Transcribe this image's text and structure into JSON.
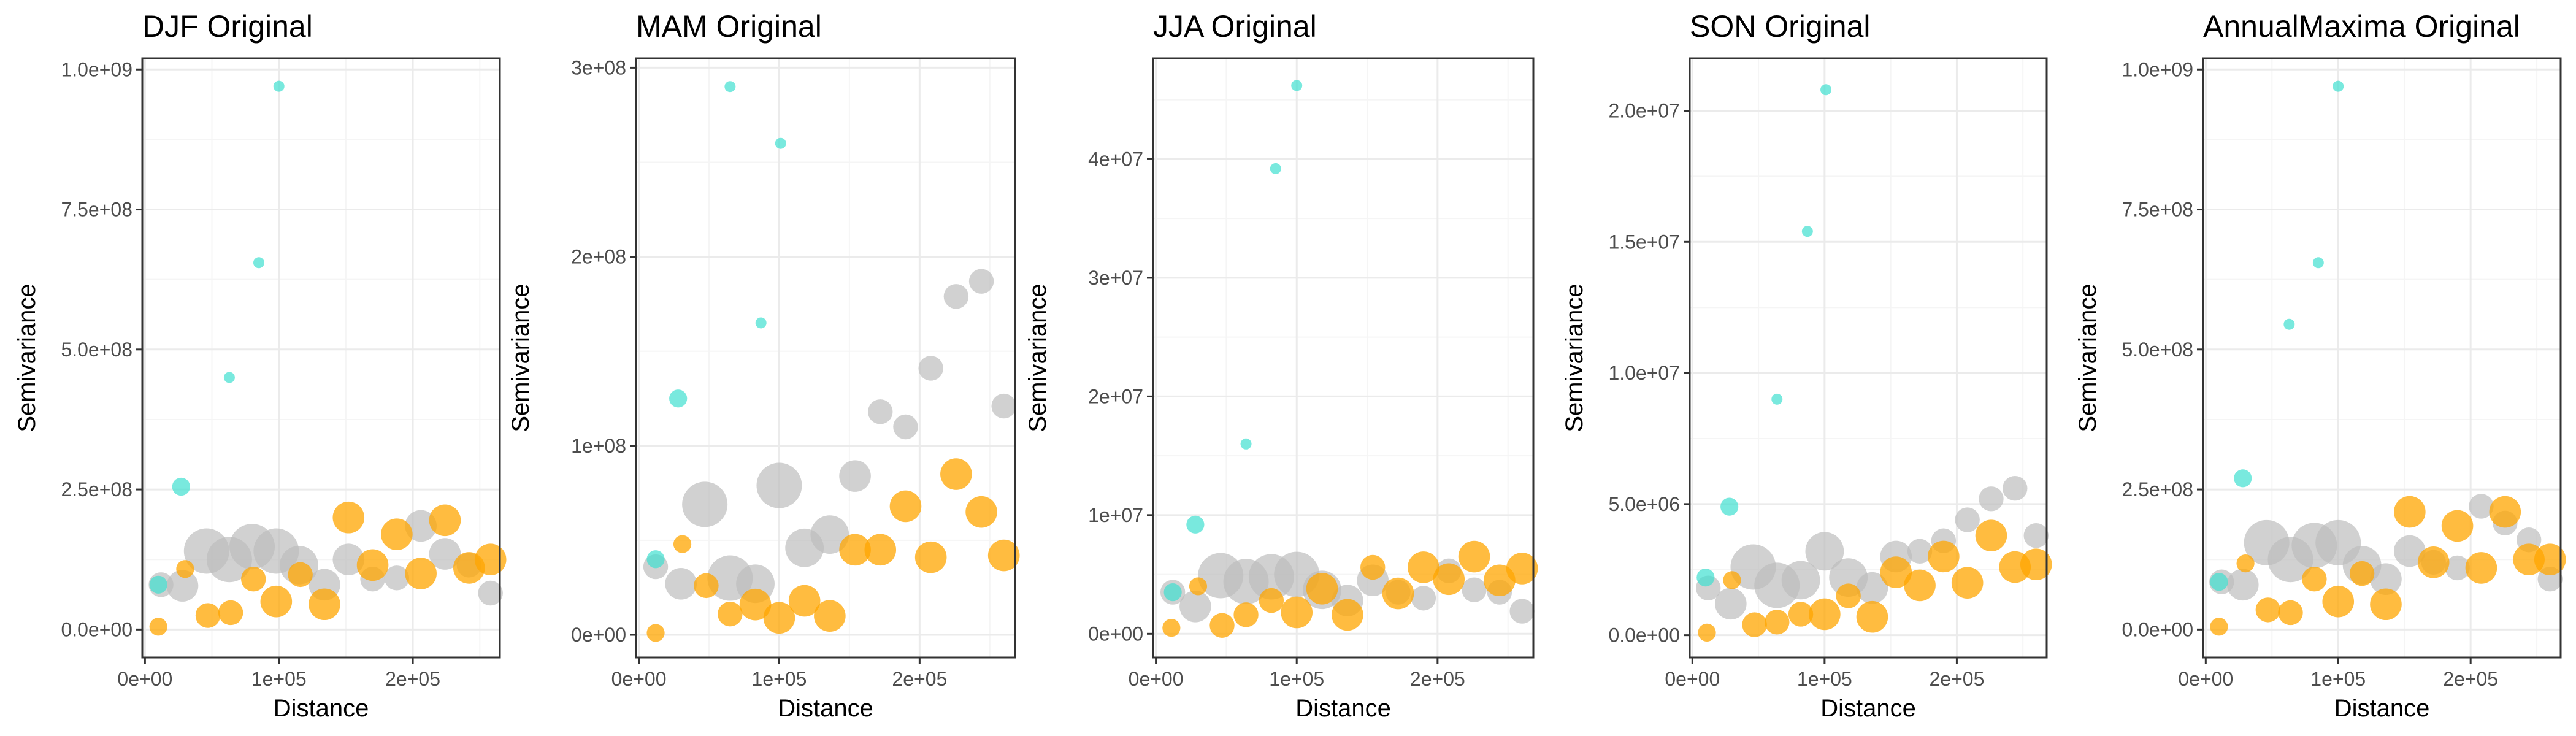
{
  "colors": {
    "cyan": "#40E0D0",
    "gray": "#BEBEBE",
    "orange": "#FFA500"
  },
  "chart_data": [
    {
      "type": "scatter",
      "title": "DJF Original",
      "xlabel": "Distance",
      "ylabel": "Semivariance",
      "xlim": [
        -2000,
        265000
      ],
      "ylim": [
        -50000000,
        1020000000
      ],
      "xticks": [
        0,
        100000,
        200000
      ],
      "xtick_labels": [
        "0e+00",
        "1e+05",
        "2e+05"
      ],
      "yticks": [
        0,
        250000000,
        500000000,
        750000000,
        1000000000
      ],
      "ytick_labels": [
        "0.0e+00",
        "2.5e+08",
        "5.0e+08",
        "7.5e+08",
        "1.0e+09"
      ],
      "grid": true,
      "series": [
        {
          "color": "gray",
          "x": [
            12000,
            28000,
            46000,
            63000,
            80000,
            98000,
            115000,
            134000,
            152000,
            170000,
            188000,
            206000,
            224000,
            242000,
            258000
          ],
          "y": [
            80000000,
            78000000,
            140000000,
            125000000,
            148000000,
            140000000,
            115000000,
            80000000,
            125000000,
            90000000,
            92000000,
            185000000,
            135000000,
            115000000,
            65000000
          ],
          "size": [
            3,
            4,
            6,
            6,
            6,
            6,
            5,
            4,
            4,
            3,
            3,
            4,
            4,
            3,
            3
          ]
        },
        {
          "color": "orange",
          "x": [
            10000,
            30000,
            47000,
            64000,
            81000,
            98000,
            116000,
            134000,
            152000,
            170000,
            188000,
            206000,
            224000,
            242000,
            258000
          ],
          "y": [
            5000000,
            108000000,
            25000000,
            30000000,
            90000000,
            50000000,
            98000000,
            45000000,
            200000000,
            115000000,
            170000000,
            100000000,
            195000000,
            110000000,
            125000000
          ],
          "size": [
            2,
            2,
            3,
            3,
            3,
            4,
            3,
            4,
            4,
            4,
            4,
            4,
            4,
            4,
            4
          ]
        },
        {
          "color": "cyan",
          "x": [
            10000,
            27000,
            63000,
            85000,
            100000
          ],
          "y": [
            80000000,
            255000000,
            450000000,
            655000000,
            970000000
          ],
          "size": [
            2,
            2,
            1,
            1,
            1
          ]
        }
      ]
    },
    {
      "type": "scatter",
      "title": "MAM Original",
      "xlabel": "Distance",
      "ylabel": "Semivariance",
      "xlim": [
        -2000,
        268000
      ],
      "ylim": [
        -12000000,
        305000000
      ],
      "xticks": [
        0,
        100000,
        200000
      ],
      "xtick_labels": [
        "0e+00",
        "1e+05",
        "2e+05"
      ],
      "yticks": [
        0,
        100000000,
        200000000,
        300000000
      ],
      "ytick_labels": [
        "0e+00",
        "1e+08",
        "2e+08",
        "3e+08"
      ],
      "grid": true,
      "series": [
        {
          "color": "gray",
          "x": [
            12000,
            30000,
            47000,
            65000,
            83000,
            100000,
            118000,
            136000,
            154000,
            172000,
            190000,
            208000,
            226000,
            244000,
            260000
          ],
          "y": [
            36000000,
            27000000,
            69000000,
            30000000,
            27000000,
            79000000,
            46000000,
            53000000,
            84000000,
            118000000,
            110000000,
            141000000,
            179000000,
            187000000,
            121000000
          ],
          "size": [
            3,
            4,
            6,
            6,
            5,
            6,
            5,
            5,
            4,
            3,
            3,
            3,
            3,
            3,
            3
          ]
        },
        {
          "color": "orange",
          "x": [
            12000,
            31000,
            48000,
            65000,
            83000,
            100000,
            118000,
            136000,
            154000,
            172000,
            190000,
            208000,
            226000,
            244000,
            260000
          ],
          "y": [
            1000000,
            48000000,
            26000000,
            11000000,
            16000000,
            9000000,
            18000000,
            10000000,
            45000000,
            45000000,
            68000000,
            41000000,
            85000000,
            65000000,
            42000000
          ],
          "size": [
            2,
            2,
            3,
            3,
            4,
            4,
            4,
            4,
            4,
            4,
            4,
            4,
            4,
            4,
            4
          ]
        },
        {
          "color": "cyan",
          "x": [
            12000,
            28000,
            65000,
            87000,
            101000
          ],
          "y": [
            40000000,
            125000000,
            290000000,
            165000000,
            260000000
          ],
          "size": [
            2,
            2,
            1,
            1,
            1
          ]
        }
      ]
    },
    {
      "type": "scatter",
      "title": "JJA Original",
      "xlabel": "Distance",
      "ylabel": "Semivariance",
      "xlim": [
        -2000,
        268000
      ],
      "ylim": [
        -2000000,
        48500000
      ],
      "xticks": [
        0,
        100000,
        200000
      ],
      "xtick_labels": [
        "0e+00",
        "1e+05",
        "2e+05"
      ],
      "yticks": [
        0,
        10000000,
        20000000,
        30000000,
        40000000
      ],
      "ytick_labels": [
        "0e+00",
        "1e+07",
        "2e+07",
        "3e+07",
        "4e+07"
      ],
      "grid": true,
      "series": [
        {
          "color": "gray",
          "x": [
            12000,
            28000,
            46000,
            64000,
            82000,
            100000,
            118000,
            136000,
            154000,
            172000,
            190000,
            208000,
            226000,
            244000,
            260000
          ],
          "y": [
            3500000,
            2300000,
            4900000,
            4400000,
            4800000,
            5000000,
            3700000,
            2800000,
            4500000,
            3500000,
            3000000,
            5300000,
            3700000,
            3500000,
            1900000
          ],
          "size": [
            3,
            4,
            6,
            6,
            6,
            6,
            5,
            4,
            4,
            3,
            3,
            3,
            3,
            3,
            3
          ]
        },
        {
          "color": "orange",
          "x": [
            11000,
            30000,
            47000,
            64000,
            82000,
            100000,
            118000,
            136000,
            154000,
            172000,
            190000,
            208000,
            226000,
            244000,
            260000
          ],
          "y": [
            500000,
            4000000,
            700000,
            1600000,
            2800000,
            1800000,
            3800000,
            1600000,
            5600000,
            3400000,
            5600000,
            4600000,
            6500000,
            4500000,
            5500000
          ],
          "size": [
            2,
            2,
            3,
            3,
            3,
            4,
            4,
            4,
            3,
            4,
            4,
            4,
            4,
            4,
            4
          ]
        },
        {
          "color": "cyan",
          "x": [
            12000,
            28000,
            64000,
            85000,
            100000
          ],
          "y": [
            3500000,
            9200000,
            16000000,
            39200000,
            46200000
          ],
          "size": [
            2,
            2,
            1,
            1,
            1
          ]
        }
      ]
    },
    {
      "type": "scatter",
      "title": "SON Original",
      "xlabel": "Distance",
      "ylabel": "Semivariance",
      "xlim": [
        -2000,
        268000
      ],
      "ylim": [
        -850000,
        22000000
      ],
      "xticks": [
        0,
        100000,
        200000
      ],
      "xtick_labels": [
        "0e+00",
        "1e+05",
        "2e+05"
      ],
      "yticks": [
        0,
        5000000,
        10000000,
        15000000,
        20000000
      ],
      "ytick_labels": [
        "0.0e+00",
        "5.0e+06",
        "1.0e+07",
        "1.5e+07",
        "2.0e+07"
      ],
      "grid": true,
      "series": [
        {
          "color": "gray",
          "x": [
            12000,
            29000,
            46000,
            64000,
            82000,
            100000,
            118000,
            136000,
            154000,
            172000,
            190000,
            208000,
            226000,
            244000,
            260000
          ],
          "y": [
            1800000,
            1200000,
            2600000,
            1900000,
            2100000,
            3200000,
            2200000,
            1800000,
            3000000,
            3200000,
            3600000,
            4400000,
            5200000,
            5600000,
            3800000
          ],
          "size": [
            3,
            4,
            6,
            6,
            5,
            5,
            5,
            4,
            4,
            3,
            3,
            3,
            3,
            3,
            3
          ]
        },
        {
          "color": "orange",
          "x": [
            11000,
            30000,
            47000,
            64000,
            82000,
            100000,
            118000,
            136000,
            154000,
            172000,
            190000,
            208000,
            226000,
            244000,
            260000
          ],
          "y": [
            100000,
            2100000,
            400000,
            500000,
            800000,
            800000,
            1500000,
            700000,
            2400000,
            1900000,
            3000000,
            2000000,
            3800000,
            2600000,
            2700000
          ],
          "size": [
            2,
            2,
            3,
            3,
            3,
            4,
            3,
            4,
            4,
            4,
            4,
            4,
            4,
            4,
            4
          ]
        },
        {
          "color": "cyan",
          "x": [
            10000,
            28000,
            64000,
            87000,
            101000
          ],
          "y": [
            2200000,
            4900000,
            9000000,
            15400000,
            20800000
          ],
          "size": [
            2,
            2,
            1,
            1,
            1
          ]
        }
      ]
    },
    {
      "type": "scatter",
      "title": "AnnualMaxima Original",
      "xlabel": "Distance",
      "ylabel": "Semivariance",
      "xlim": [
        -2000,
        268000
      ],
      "ylim": [
        -50000000,
        1020000000
      ],
      "xticks": [
        0,
        100000,
        200000
      ],
      "xtick_labels": [
        "0e+00",
        "1e+05",
        "2e+05"
      ],
      "yticks": [
        0,
        250000000,
        500000000,
        750000000,
        1000000000
      ],
      "ytick_labels": [
        "0.0e+00",
        "2.5e+08",
        "5.0e+08",
        "7.5e+08",
        "1.0e+09"
      ],
      "grid": true,
      "series": [
        {
          "color": "gray",
          "x": [
            12000,
            28000,
            46000,
            64000,
            82000,
            100000,
            118000,
            136000,
            154000,
            172000,
            190000,
            208000,
            226000,
            244000,
            260000
          ],
          "y": [
            85000000,
            80000000,
            155000000,
            125000000,
            150000000,
            155000000,
            115000000,
            90000000,
            140000000,
            120000000,
            110000000,
            220000000,
            190000000,
            160000000,
            90000000
          ],
          "size": [
            3,
            4,
            6,
            6,
            6,
            6,
            5,
            4,
            4,
            3,
            3,
            3,
            3,
            3,
            3
          ]
        },
        {
          "color": "orange",
          "x": [
            10000,
            30000,
            47000,
            64000,
            82000,
            100000,
            118000,
            136000,
            154000,
            172000,
            190000,
            208000,
            226000,
            244000,
            260000
          ],
          "y": [
            5000000,
            118000000,
            35000000,
            30000000,
            90000000,
            50000000,
            100000000,
            45000000,
            210000000,
            120000000,
            185000000,
            110000000,
            210000000,
            125000000,
            125000000
          ],
          "size": [
            2,
            2,
            3,
            3,
            3,
            4,
            3,
            4,
            4,
            4,
            4,
            4,
            4,
            4,
            4
          ]
        },
        {
          "color": "cyan",
          "x": [
            10000,
            28000,
            63000,
            85000,
            100000
          ],
          "y": [
            85000000,
            270000000,
            545000000,
            655000000,
            970000000
          ],
          "size": [
            2,
            2,
            1,
            1,
            1
          ]
        }
      ]
    }
  ]
}
